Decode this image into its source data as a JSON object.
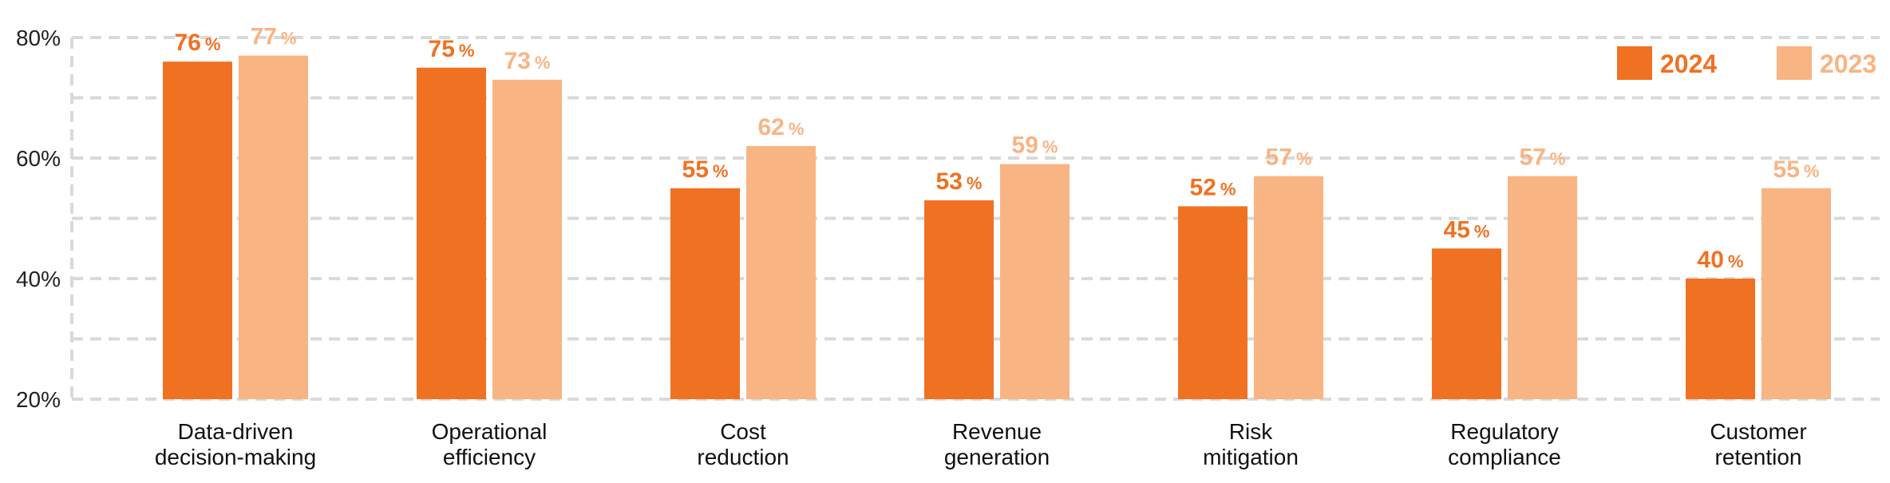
{
  "chart_data": {
    "type": "bar",
    "categories": [
      [
        "Data-driven",
        "decision-making"
      ],
      [
        "Operational",
        "efficiency"
      ],
      [
        "Cost",
        "reduction"
      ],
      [
        "Revenue",
        "generation"
      ],
      [
        "Risk",
        "mitigation"
      ],
      [
        "Regulatory",
        "compliance"
      ],
      [
        "Customer",
        "retention"
      ]
    ],
    "series": [
      {
        "name": "2024",
        "values": [
          76,
          75,
          55,
          53,
          52,
          45,
          40
        ],
        "color": "#f07122"
      },
      {
        "name": "2023",
        "values": [
          77,
          73,
          62,
          59,
          57,
          57,
          55
        ],
        "color": "#f9b483"
      }
    ],
    "value_suffix": "%",
    "ylim": [
      20,
      80
    ],
    "yticks": [
      "20%",
      "40%",
      "60%",
      "80%"
    ],
    "ytick_values": [
      20,
      40,
      60,
      80
    ],
    "minor_gridlines": [
      30,
      50,
      70
    ],
    "grid": true,
    "grid_style": "dashed",
    "legend_position": "top-right",
    "xlabel": "",
    "ylabel": "",
    "title": ""
  }
}
